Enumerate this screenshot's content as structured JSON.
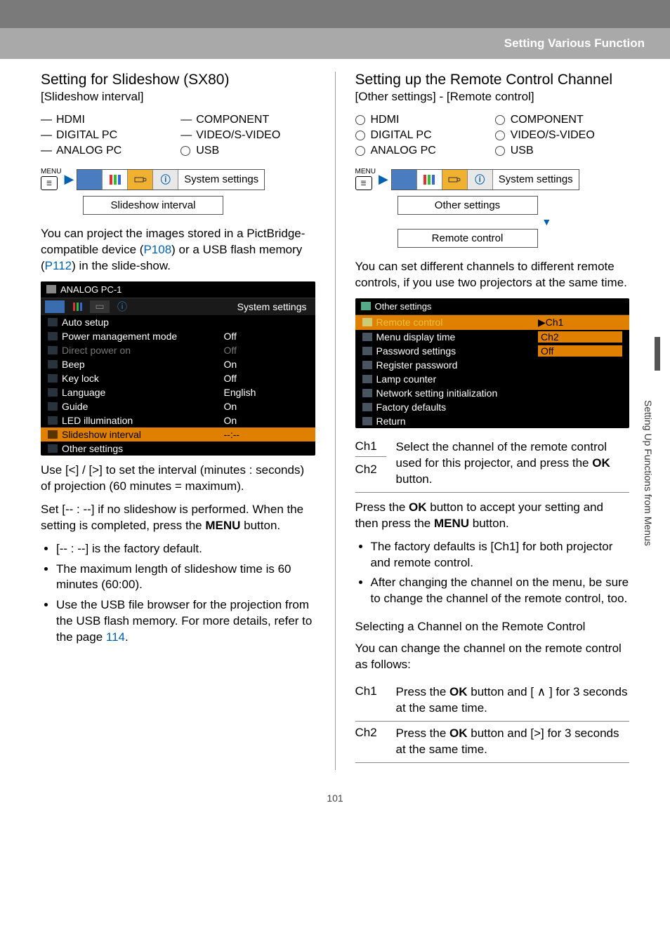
{
  "header": {
    "title": "Setting Various Function"
  },
  "page_number": "101",
  "side_label": "Setting Up Functions from Menus",
  "left": {
    "heading": "Setting for Slideshow (SX80)",
    "path": "[Slideshow interval]",
    "inputs_a": [
      "HDMI",
      "DIGITAL PC",
      "ANALOG PC"
    ],
    "inputs_b": [
      "COMPONENT",
      "VIDEO/S-VIDEO",
      "USB"
    ],
    "input_modes_a": [
      "dash",
      "dash",
      "dash"
    ],
    "input_modes_b": [
      "dash",
      "dash",
      "circle"
    ],
    "menu_tab_label": "System settings",
    "menu_sub": "Slideshow interval",
    "para1_a": "You can project the images stored in a PictBridge-compatible device (",
    "para1_link1": "P108",
    "para1_b": ") or a USB flash memory (",
    "para1_link2": "P112",
    "para1_c": ") in the slide-show.",
    "ss_title": "ANALOG PC-1",
    "ss_right": "System settings",
    "ss_rows": [
      {
        "name": "Auto setup",
        "val": "",
        "icon": "A"
      },
      {
        "name": "Power management mode",
        "val": "Off",
        "icon": "pwr"
      },
      {
        "name": "Direct power on",
        "val": "Off",
        "dim": true,
        "icon": "plug"
      },
      {
        "name": "Beep",
        "val": "On",
        "icon": "snd"
      },
      {
        "name": "Key lock",
        "val": "Off",
        "icon": "lock"
      },
      {
        "name": "Language",
        "val": "English",
        "icon": "lang"
      },
      {
        "name": "Guide",
        "val": "On",
        "icon": "guide"
      },
      {
        "name": "LED illumination",
        "val": "On",
        "icon": "led"
      },
      {
        "name": "Slideshow interval",
        "val": "--:--",
        "hl": true,
        "icon": "slide"
      },
      {
        "name": "Other settings",
        "val": "",
        "icon": "other"
      }
    ],
    "para2": "Use [<] / [>] to set the interval (minutes : seconds) of projection (60 minutes = maximum).",
    "para3": "Set [-- : --] if no slideshow is performed. When the setting is completed, press the ",
    "para3_bold": "MENU",
    "para3_tail": " button.",
    "bullets": [
      "[-- : --] is the factory default.",
      "The maximum length of slideshow time is 60 minutes (60:00).",
      "Use the USB file browser for the projection from the USB flash memory. For more details, refer to the page "
    ],
    "bullet3_link": "114",
    "bullet3_tail": "."
  },
  "right": {
    "heading": "Setting up the Remote Control Channel",
    "path": "[Other settings] - [Remote control]",
    "inputs_a": [
      "HDMI",
      "DIGITAL PC",
      "ANALOG PC"
    ],
    "inputs_b": [
      "COMPONENT",
      "VIDEO/S-VIDEO",
      "USB"
    ],
    "menu_tab_label": "System settings",
    "menu_sub1": "Other settings",
    "menu_sub2": "Remote control",
    "para1": "You can set different channels to different remote controls, if you use two projectors at the same time.",
    "ss_title": "Other settings",
    "ss_rows": [
      {
        "name": "Remote control",
        "val": "▶Ch1",
        "hl": true,
        "orange": true,
        "icon": "pen"
      },
      {
        "name": "Menu display time",
        "val": "Ch2",
        "halfhl": true,
        "icon": "menu"
      },
      {
        "name": "Password settings",
        "val": "Off",
        "halfhl": true,
        "icon": "pwd"
      },
      {
        "name": "Register password",
        "val": "",
        "icon": "reg"
      },
      {
        "name": "Lamp counter",
        "val": "",
        "icon": "lamp"
      },
      {
        "name": "Network setting initialization",
        "val": "",
        "icon": "net"
      },
      {
        "name": "Factory defaults",
        "val": "",
        "icon": "fact"
      },
      {
        "name": "Return",
        "val": "",
        "icon": "ret"
      }
    ],
    "ch_combo_keys": [
      "Ch1",
      "Ch2"
    ],
    "ch_combo_desc_a": "Select the channel of the remote control used for this projector, and press the ",
    "ch_combo_desc_bold": "OK",
    "ch_combo_desc_b": " button.",
    "para2_a": "Press the ",
    "para2_b1": "OK",
    "para2_c": " button to accept your setting and then press the ",
    "para2_b2": "MENU",
    "para2_d": " button.",
    "bullets": [
      "The factory defaults is [Ch1] for both projector and remote control.",
      "After changing the channel on the menu, be sure to change the channel of the remote control, too."
    ],
    "subhead": "Selecting a Channel on the Remote Control",
    "para3": "You can change the channel on the remote control as follows:",
    "ch_rows": [
      {
        "k": "Ch1",
        "a": "Press the ",
        "b": "OK",
        "c": " button and [ ∧ ] for 3 seconds at the same time."
      },
      {
        "k": "Ch2",
        "a": "Press the ",
        "b": "OK",
        "c": " button and [>] for 3 seconds at the same time."
      }
    ]
  }
}
